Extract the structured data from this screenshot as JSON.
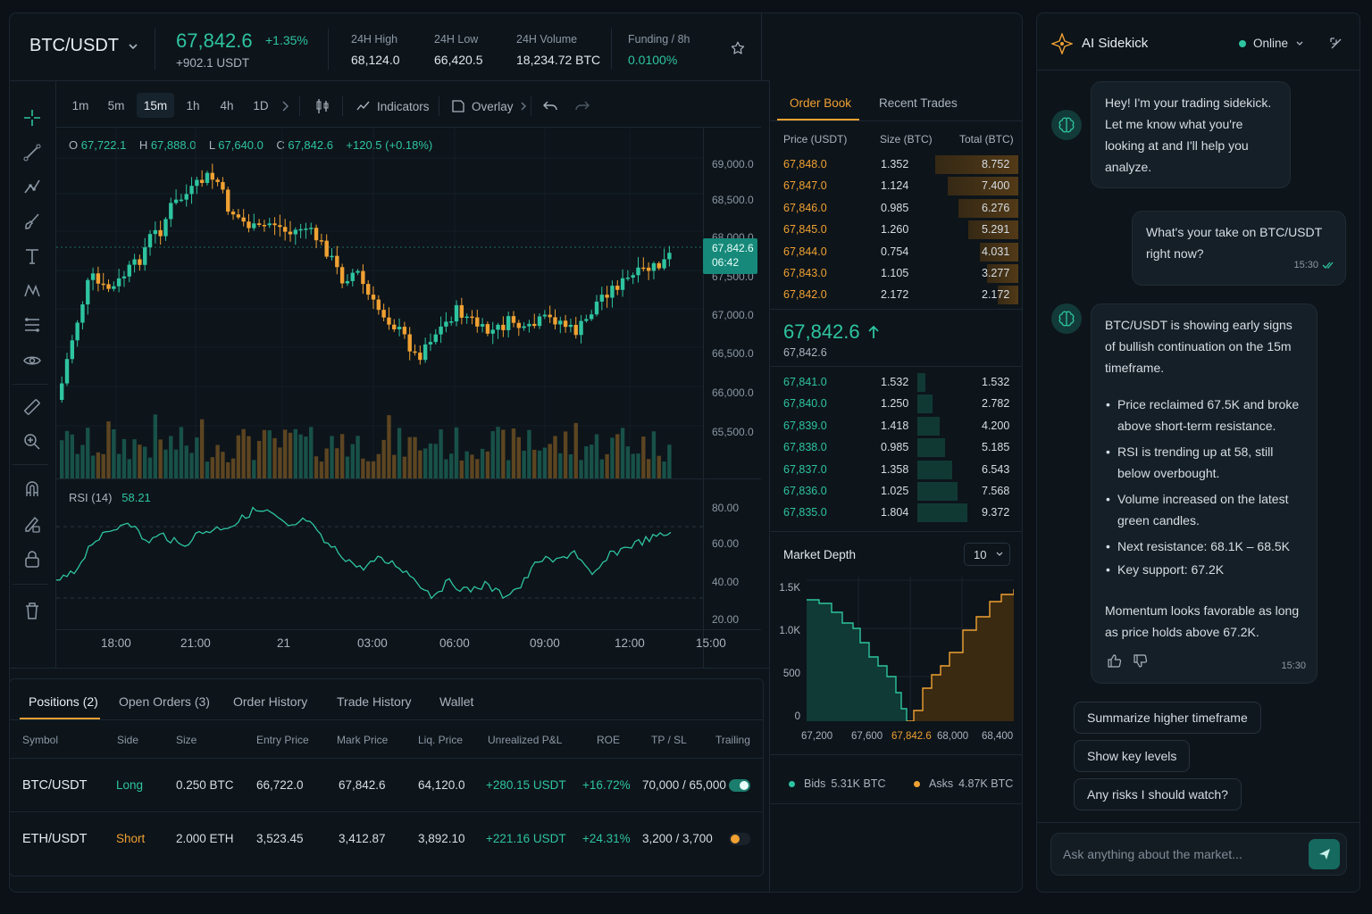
{
  "header": {
    "symbol": "BTC/USDT",
    "price": "67,842.6",
    "change_pct": "+1.35%",
    "change_abs": "+902.1 USDT",
    "stats": [
      {
        "label": "24H High",
        "value": "68,124.0"
      },
      {
        "label": "24H Low",
        "value": "66,420.5"
      },
      {
        "label": "24H Volume",
        "value": "18,234.72 BTC"
      },
      {
        "label": "Funding / 8h",
        "value": "0.0100%"
      }
    ]
  },
  "timeframes": [
    "1m",
    "5m",
    "15m",
    "1h",
    "4h",
    "1D"
  ],
  "active_timeframe": "15m",
  "toolbar": {
    "indicators": "Indicators",
    "overlay": "Overlay"
  },
  "ohlc": {
    "o_label": "O",
    "o": "67,722.1",
    "h_label": "H",
    "h": "67,888.0",
    "l_label": "L",
    "l": "67,640.0",
    "c_label": "C",
    "c": "67,842.6",
    "chg": "+120.5 (+0.18%)"
  },
  "price_axis": [
    "69,000.0",
    "68,500.0",
    "68,000.0",
    "67,500.0",
    "67,000.0",
    "66,500.0",
    "66,000.0",
    "65,500.0"
  ],
  "last_price_tag": {
    "price": "67,842.6",
    "countdown": "06:42"
  },
  "rsi": {
    "label": "RSI (14)",
    "value": "58.21",
    "axis": [
      "80.00",
      "60.00",
      "40.00",
      "20.00"
    ]
  },
  "time_axis": [
    "18:00",
    "21:00",
    "21",
    "03:00",
    "06:00",
    "09:00",
    "12:00",
    "15:00"
  ],
  "orderbook": {
    "tabs": [
      "Order Book",
      "Recent Trades"
    ],
    "headers": [
      "Price (USDT)",
      "Size (BTC)",
      "Total (BTC)"
    ],
    "asks": [
      [
        "67,848.0",
        "1.352",
        "8.752"
      ],
      [
        "67,847.0",
        "1.124",
        "7.400"
      ],
      [
        "67,846.0",
        "0.985",
        "6.276"
      ],
      [
        "67,845.0",
        "1.260",
        "5.291"
      ],
      [
        "67,844.0",
        "0.754",
        "4.031"
      ],
      [
        "67,843.0",
        "1.105",
        "3.277"
      ],
      [
        "67,842.0",
        "2.172",
        "2.172"
      ]
    ],
    "mid_price": "67,842.6",
    "mid_sub": "67,842.6",
    "bids": [
      [
        "67,841.0",
        "1.532",
        "1.532"
      ],
      [
        "67,840.0",
        "1.250",
        "2.782"
      ],
      [
        "67,839.0",
        "1.418",
        "4.200"
      ],
      [
        "67,838.0",
        "0.985",
        "5.185"
      ],
      [
        "67,837.0",
        "1.358",
        "6.543"
      ],
      [
        "67,836.0",
        "1.025",
        "7.568"
      ],
      [
        "67,835.0",
        "1.804",
        "9.372"
      ]
    ]
  },
  "depth": {
    "title": "Market Depth",
    "select": "10",
    "y_axis": [
      "1.5K",
      "1.0K",
      "500",
      "0"
    ],
    "x_axis": [
      "67,200",
      "67,600",
      "67,842.6",
      "68,000",
      "68,400"
    ],
    "bids_label": "Bids",
    "bids_value": "5.31K BTC",
    "asks_label": "Asks",
    "asks_value": "4.87K BTC"
  },
  "positions": {
    "tabs": [
      "Positions (2)",
      "Open Orders (3)",
      "Order History",
      "Trade History",
      "Wallet"
    ],
    "columns": [
      "Symbol",
      "Side",
      "Size",
      "Entry Price",
      "Mark Price",
      "Liq. Price",
      "Unrealized P&L",
      "ROE",
      "TP / SL",
      "Trailing"
    ],
    "rows": [
      [
        "BTC/USDT",
        "Long",
        "0.250 BTC",
        "66,722.0",
        "67,842.6",
        "64,120.0",
        "+280.15 USDT",
        "+16.72%",
        "70,000 / 65,000"
      ],
      [
        "ETH/USDT",
        "Short",
        "2.000 ETH",
        "3,523.45",
        "3,412.87",
        "3,892.10",
        "+221.16 USDT",
        "+24.31%",
        "3,200 / 3,700"
      ]
    ]
  },
  "sidekick": {
    "title": "AI Sidekick",
    "status": "Online",
    "msg1": [
      "Hey! I'm your trading sidekick.",
      "Let me know what you're",
      "looking at and I'll help you",
      "analyze."
    ],
    "user_msg": [
      "What's your take on BTC/USDT",
      "right now?"
    ],
    "user_time": "15:30",
    "reply_intro": [
      "BTC/USDT is showing early signs",
      "of bullish continuation on the 15m",
      "timeframe."
    ],
    "bullets": [
      [
        "Price reclaimed 67.5K and broke",
        "above short-term resistance."
      ],
      [
        "RSI is trending up at 58, still",
        "below overbought."
      ],
      [
        "Volume increased on the latest",
        "green candles."
      ],
      [
        "Next resistance: 68.1K – 68.5K"
      ],
      [
        "Key support: 67.2K"
      ]
    ],
    "reply_outro": [
      "Momentum looks favorable as long",
      "as price holds above 67.2K."
    ],
    "reply_time": "15:30",
    "chips": [
      "Summarize higher timeframe",
      "Show key levels",
      "Any risks I should watch?"
    ],
    "input_placeholder": "Ask anything about the market..."
  },
  "colors": {
    "up": "#2ec4a0",
    "down": "#f0a132",
    "bg": "#0b1116",
    "panel": "#0d141a"
  }
}
